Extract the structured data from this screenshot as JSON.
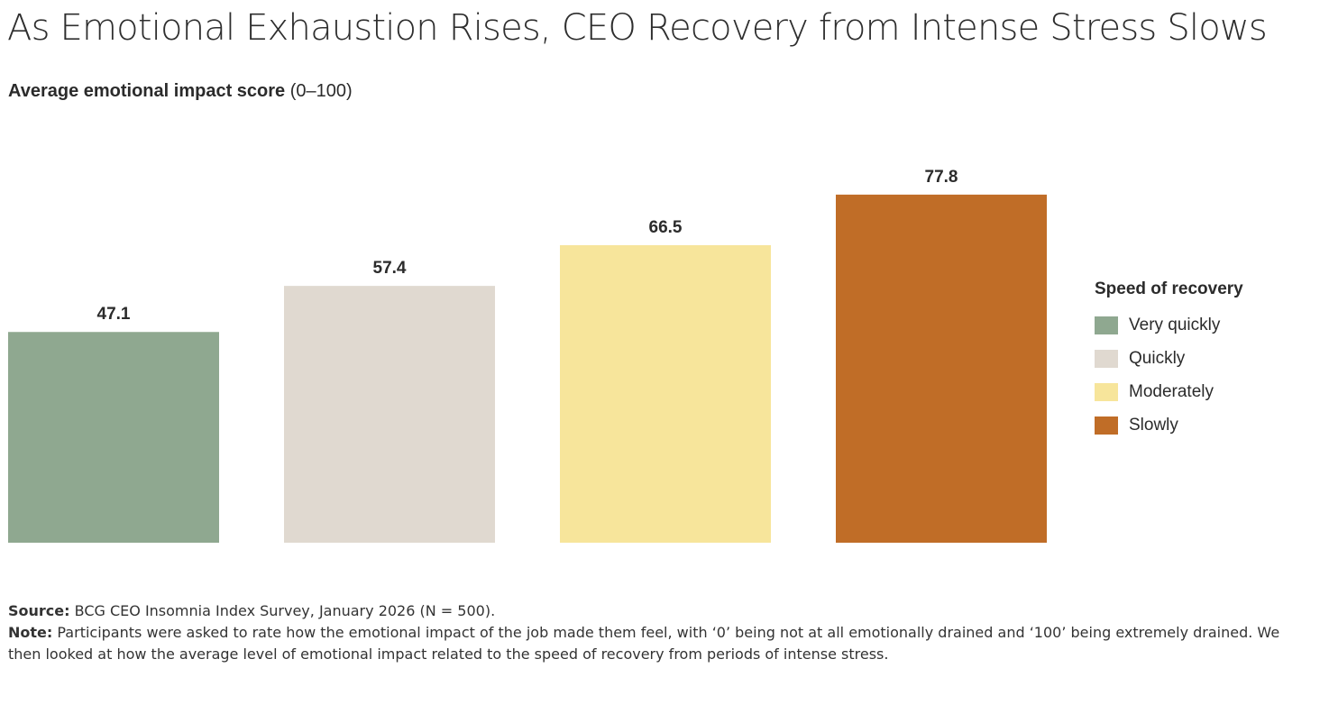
{
  "title": "As Emotional Exhaustion Rises, CEO Recovery from Intense Stress Slows",
  "subtitle_bold": "Average emotional impact score",
  "subtitle_paren": "(0–100)",
  "chart_data": {
    "type": "bar",
    "categories": [
      "Very quickly",
      "Quickly",
      "Moderately",
      "Slowly"
    ],
    "values": [
      47.1,
      57.4,
      66.5,
      77.8
    ],
    "value_labels": [
      "47.1",
      "57.4",
      "66.5",
      "77.8"
    ],
    "colors": [
      "#8fa890",
      "#e0d9d0",
      "#f7e59b",
      "#c06d27"
    ],
    "ylim": [
      0,
      100
    ],
    "grid": false,
    "legend_title": "Speed of recovery",
    "legend_position": "right"
  },
  "footer": {
    "source_label": "Source:",
    "source_text": "BCG CEO Insomnia Index Survey, January 2026 (N = 500).",
    "note_label": "Note:",
    "note_text": "Participants were asked to rate how the emotional impact of the job made them feel, with ‘0’ being not at all emotionally drained and ‘100’ being extremely drained. We then looked at how the average level of emotional impact related to the speed of recovery from periods of intense stress."
  }
}
